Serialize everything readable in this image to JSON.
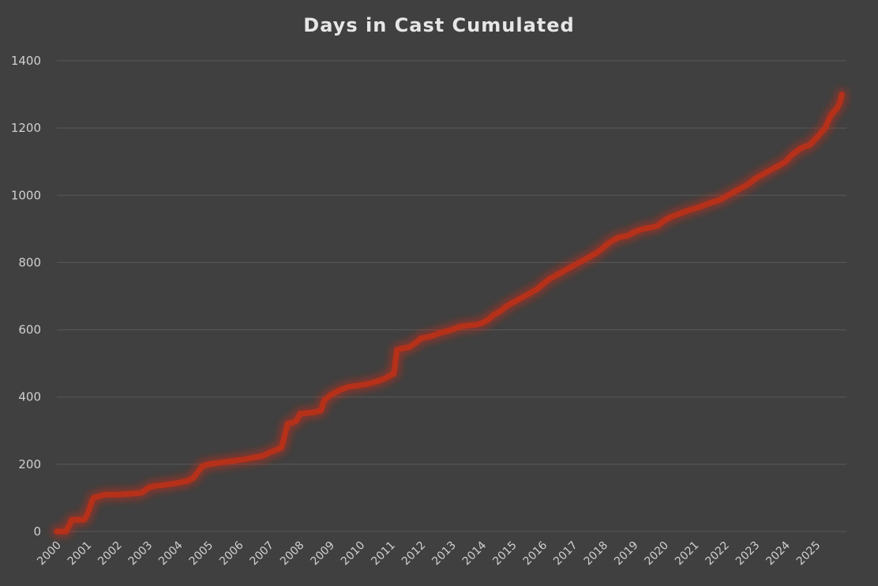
{
  "chart_data": {
    "type": "line",
    "title": "Days in Cast Cumulated",
    "xlabel": "",
    "ylabel": "",
    "ylim": [
      0,
      1400
    ],
    "xlim": [
      2000,
      2026
    ],
    "grid": true,
    "legend": "none",
    "y_ticks": [
      "0",
      "200",
      "400",
      "600",
      "800",
      "1000",
      "1200",
      "1400"
    ],
    "x_ticks": [
      "2000",
      "2001",
      "2002",
      "2003",
      "2004",
      "2005",
      "2006",
      "2007",
      "2008",
      "2009",
      "2010",
      "2011",
      "2012",
      "2013",
      "2014",
      "2015",
      "2016",
      "2017",
      "2018",
      "2019",
      "2020",
      "2021",
      "2022",
      "2023",
      "2024",
      "2025"
    ],
    "colors": {
      "background": "#404040",
      "line": "#b5311a",
      "glow": "#d22b12",
      "grid": "#595959",
      "text": "#d0d0d0"
    },
    "series": [
      {
        "x": [
          2000.0,
          2000.3,
          2000.5,
          2000.6,
          2000.9,
          2001.0,
          2001.2,
          2001.6,
          2002.0,
          2002.4,
          2002.8,
          2003.0,
          2003.2,
          2003.5,
          2003.8,
          2004.0,
          2004.3,
          2004.5,
          2004.8,
          2005.0,
          2005.4,
          2005.8,
          2006.2,
          2006.5,
          2006.8,
          2007.0,
          2007.3,
          2007.4,
          2007.6,
          2007.8,
          2007.9,
          2008.0,
          2008.2,
          2008.5,
          2008.7,
          2008.8,
          2009.0,
          2009.3,
          2009.6,
          2010.0,
          2010.3,
          2010.6,
          2010.8,
          2011.0,
          2011.1,
          2011.2,
          2011.4,
          2011.6,
          2011.8,
          2012.0,
          2012.3,
          2012.6,
          2013.0,
          2013.3,
          2013.5,
          2013.8,
          2014.0,
          2014.2,
          2014.4,
          2014.6,
          2014.8,
          2015.0,
          2015.2,
          2015.5,
          2015.8,
          2016.0,
          2016.2,
          2016.5,
          2016.8,
          2017.0,
          2017.2,
          2017.5,
          2017.8,
          2018.0,
          2018.2,
          2018.5,
          2018.8,
          2019.0,
          2019.3,
          2019.6,
          2019.8,
          2020.0,
          2020.2,
          2020.5,
          2020.8,
          2021.0,
          2021.3,
          2021.6,
          2021.8,
          2022.0,
          2022.2,
          2022.5,
          2022.8,
          2023.0,
          2023.3,
          2023.6,
          2023.8,
          2024.0,
          2024.2,
          2024.5,
          2024.8,
          2024.95,
          2025.1,
          2025.3,
          2025.5,
          2025.7,
          2025.8,
          2025.85
        ],
        "values": [
          0,
          0,
          35,
          35,
          35,
          50,
          100,
          110,
          110,
          112,
          115,
          130,
          135,
          138,
          142,
          145,
          150,
          160,
          195,
          200,
          205,
          210,
          215,
          220,
          225,
          235,
          245,
          250,
          320,
          325,
          330,
          350,
          352,
          355,
          360,
          390,
          405,
          420,
          430,
          435,
          440,
          448,
          455,
          465,
          470,
          540,
          545,
          548,
          560,
          575,
          580,
          590,
          600,
          610,
          612,
          615,
          620,
          630,
          645,
          655,
          670,
          680,
          690,
          705,
          720,
          735,
          750,
          765,
          780,
          790,
          800,
          815,
          830,
          845,
          860,
          875,
          880,
          890,
          900,
          905,
          910,
          925,
          935,
          945,
          955,
          960,
          970,
          980,
          985,
          995,
          1005,
          1020,
          1035,
          1050,
          1065,
          1080,
          1090,
          1100,
          1120,
          1140,
          1150,
          1165,
          1180,
          1200,
          1240,
          1260,
          1280,
          1300
        ]
      }
    ]
  }
}
